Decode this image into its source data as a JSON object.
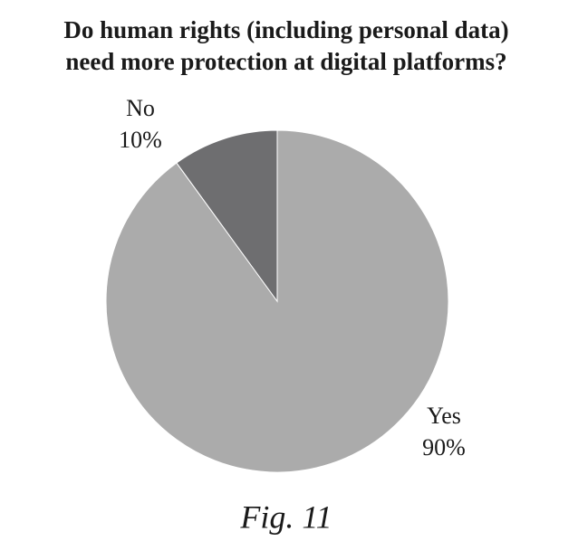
{
  "chart_data": {
    "type": "pie",
    "title": [
      "Do human rights (including personal data)",
      "need more protection at digital platforms?"
    ],
    "categories": [
      "Yes",
      "No"
    ],
    "values": [
      90,
      10
    ],
    "value_labels": [
      "90%",
      "10%"
    ],
    "colors": [
      "#ababab",
      "#6e6e70"
    ],
    "caption": "Fig. 11"
  }
}
